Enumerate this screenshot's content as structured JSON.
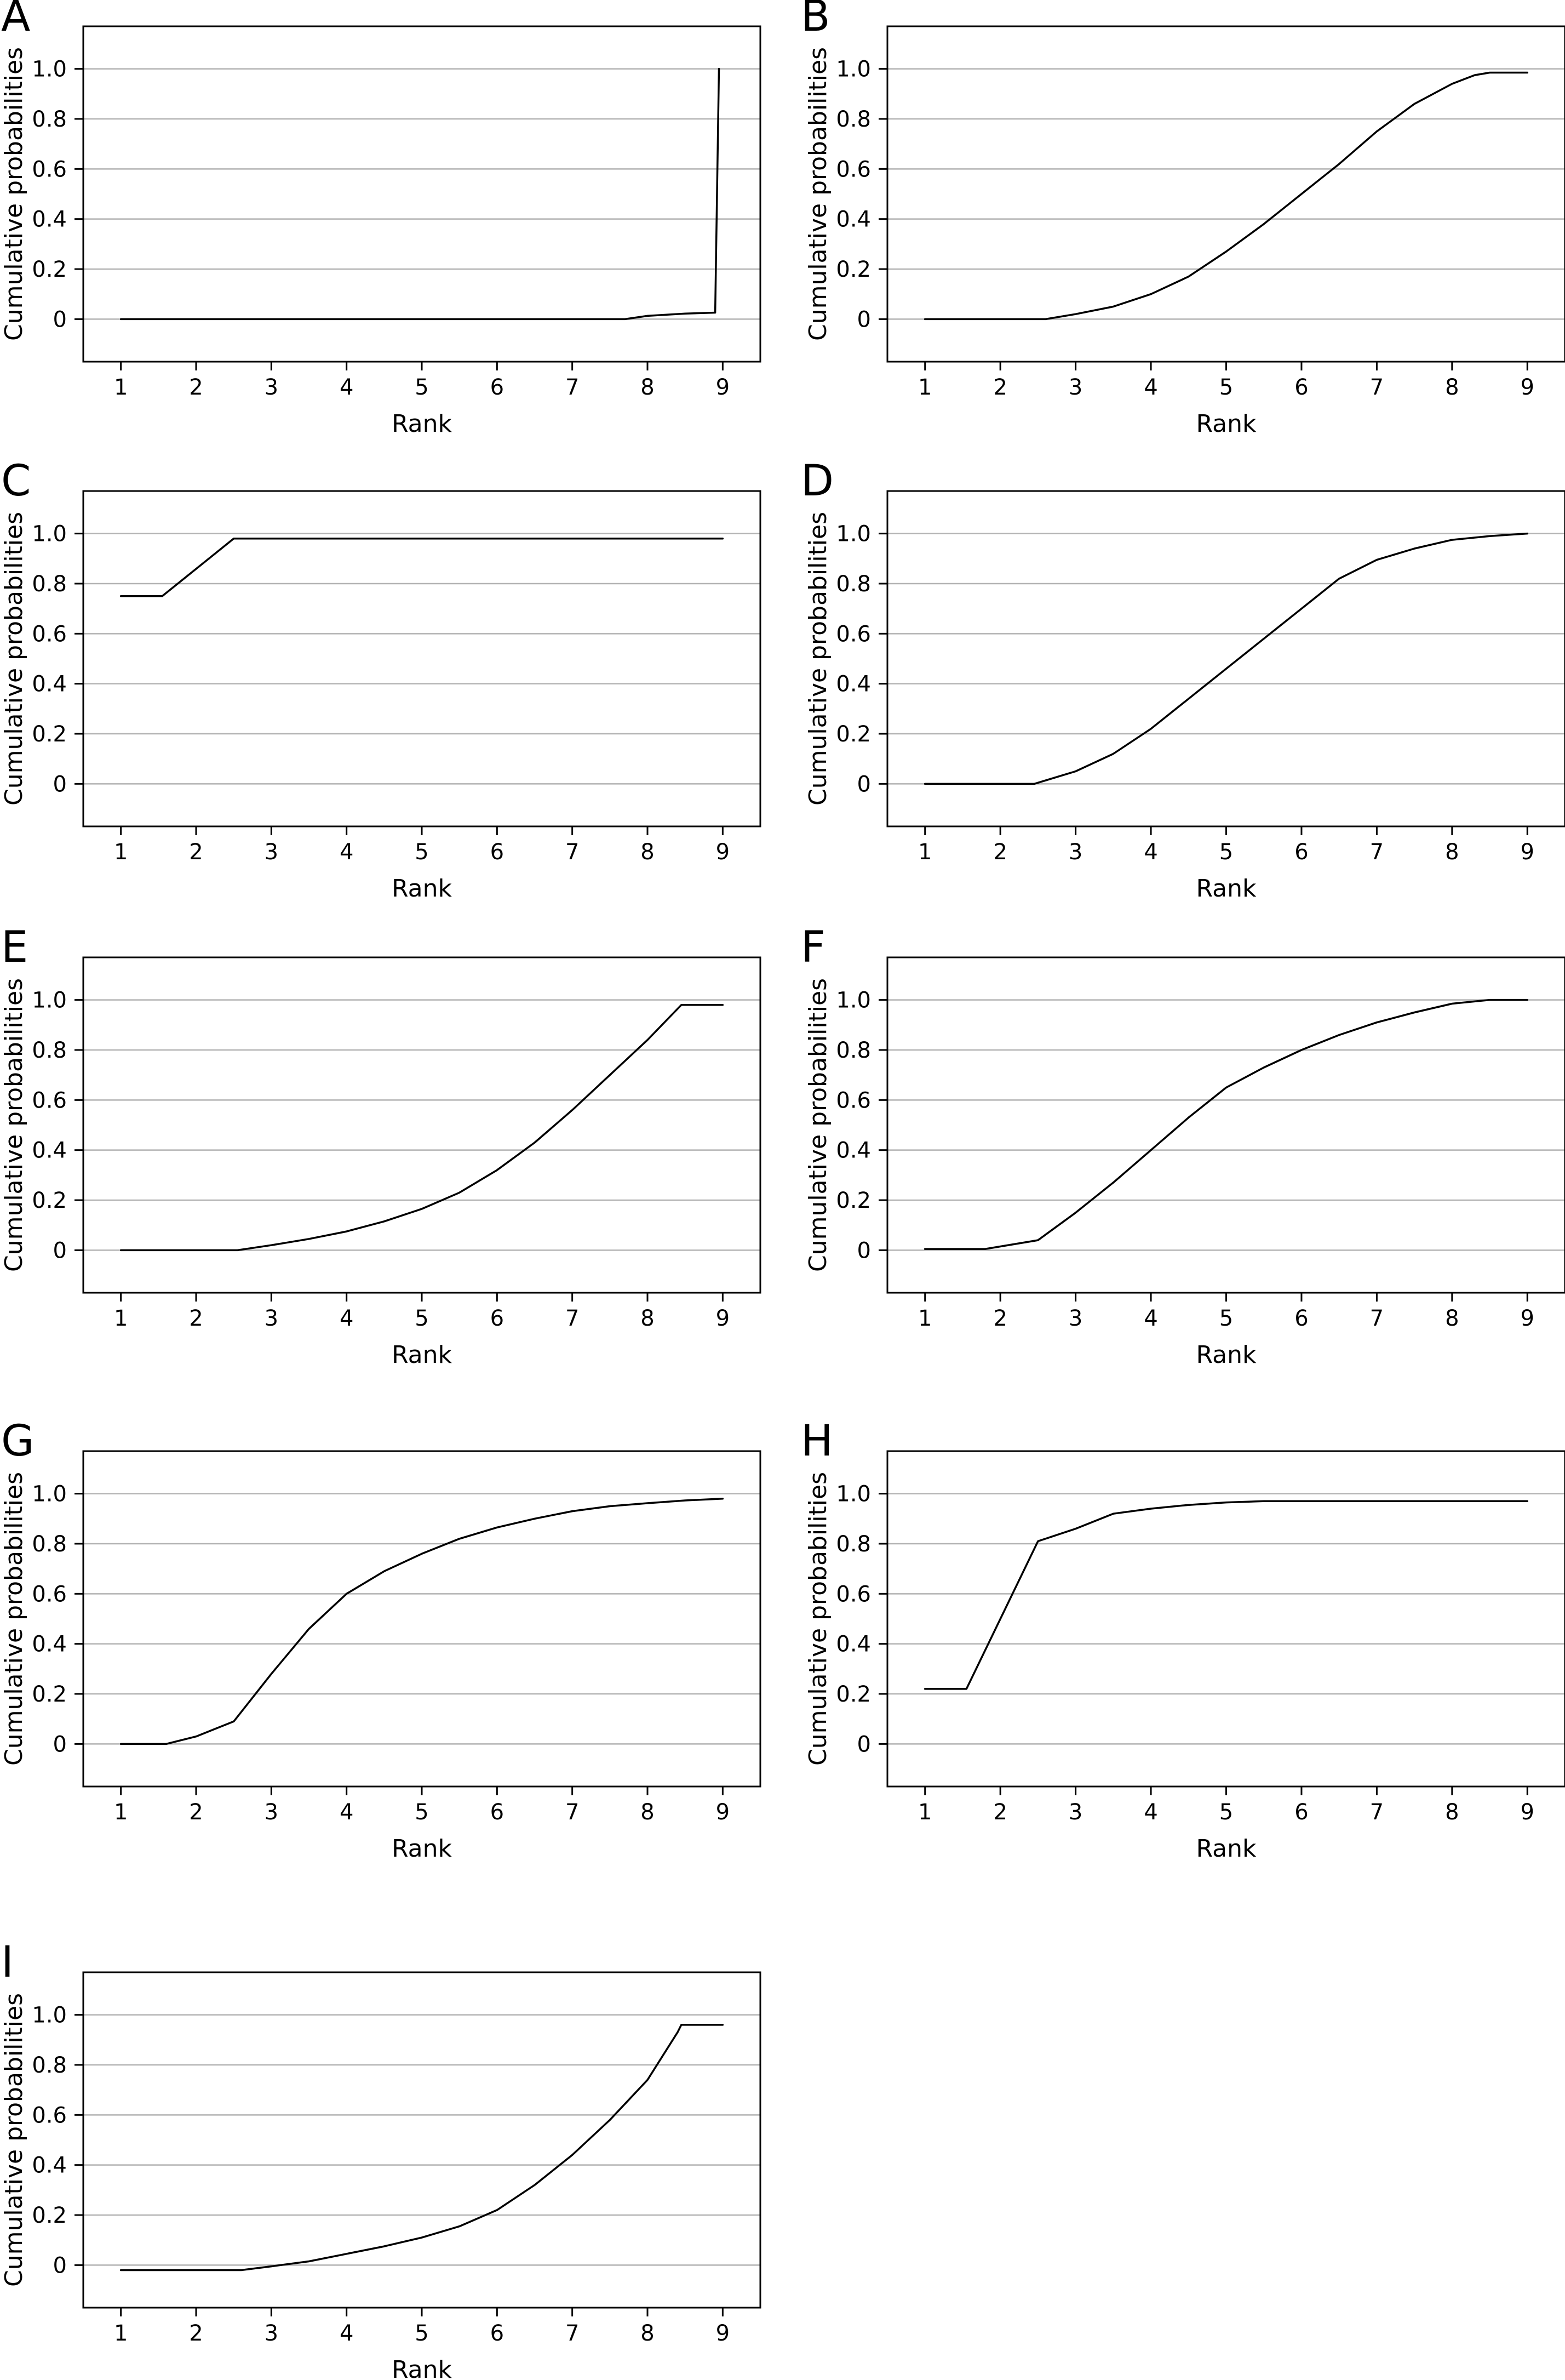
{
  "chart_data": [
    {
      "panel": "A",
      "type": "line",
      "xlabel": "Rank",
      "ylabel": "Cumulative probabilities",
      "x_ticks": [
        "1",
        "2",
        "3",
        "4",
        "5",
        "6",
        "7",
        "8",
        "9"
      ],
      "y_ticks": [
        "0",
        "0.2",
        "0.4",
        "0.6",
        "0.8",
        "1.0"
      ],
      "xlim": [
        0.5,
        9.5
      ],
      "ylim": [
        -0.17,
        1.17
      ],
      "grid": "horizontal",
      "points": [
        [
          1,
          0
        ],
        [
          2,
          0
        ],
        [
          3,
          0
        ],
        [
          4,
          0
        ],
        [
          5,
          0
        ],
        [
          6,
          0
        ],
        [
          7,
          0
        ],
        [
          7.7,
          0
        ],
        [
          8,
          0.013
        ],
        [
          8.5,
          0.022
        ],
        [
          8.9,
          0.026
        ],
        [
          8.95,
          1.0
        ]
      ]
    },
    {
      "panel": "B",
      "type": "line",
      "xlabel": "Rank",
      "ylabel": "Cumulative probabilities",
      "x_ticks": [
        "1",
        "2",
        "3",
        "4",
        "5",
        "6",
        "7",
        "8",
        "9"
      ],
      "y_ticks": [
        "0",
        "0.2",
        "0.4",
        "0.6",
        "0.8",
        "1.0"
      ],
      "xlim": [
        0.5,
        9.5
      ],
      "ylim": [
        -0.17,
        1.17
      ],
      "grid": "horizontal",
      "points": [
        [
          1,
          0
        ],
        [
          2,
          0
        ],
        [
          2.6,
          0
        ],
        [
          3,
          0.02
        ],
        [
          3.5,
          0.05
        ],
        [
          4,
          0.1
        ],
        [
          4.5,
          0.17
        ],
        [
          5,
          0.27
        ],
        [
          5.5,
          0.38
        ],
        [
          6,
          0.5
        ],
        [
          6.5,
          0.62
        ],
        [
          7,
          0.75
        ],
        [
          7.5,
          0.86
        ],
        [
          8,
          0.94
        ],
        [
          8.3,
          0.975
        ],
        [
          8.5,
          0.985
        ],
        [
          9,
          0.985
        ]
      ]
    },
    {
      "panel": "C",
      "type": "line",
      "xlabel": "Rank",
      "ylabel": "Cumulative probabilities",
      "x_ticks": [
        "1",
        "2",
        "3",
        "4",
        "5",
        "6",
        "7",
        "8",
        "9"
      ],
      "y_ticks": [
        "0",
        "0.2",
        "0.4",
        "0.6",
        "0.8",
        "1.0"
      ],
      "xlim": [
        0.5,
        9.5
      ],
      "ylim": [
        -0.17,
        1.17
      ],
      "grid": "horizontal",
      "points": [
        [
          1,
          0.75
        ],
        [
          1.55,
          0.75
        ],
        [
          2.5,
          0.98
        ],
        [
          3,
          0.98
        ],
        [
          4,
          0.98
        ],
        [
          5,
          0.98
        ],
        [
          6,
          0.98
        ],
        [
          7,
          0.98
        ],
        [
          8,
          0.98
        ],
        [
          9,
          0.98
        ]
      ]
    },
    {
      "panel": "D",
      "type": "line",
      "xlabel": "Rank",
      "ylabel": "Cumulative probabilities",
      "x_ticks": [
        "1",
        "2",
        "3",
        "4",
        "5",
        "6",
        "7",
        "8",
        "9"
      ],
      "y_ticks": [
        "0",
        "0.2",
        "0.4",
        "0.6",
        "0.8",
        "1.0"
      ],
      "xlim": [
        0.5,
        9.5
      ],
      "ylim": [
        -0.17,
        1.17
      ],
      "grid": "horizontal",
      "points": [
        [
          1,
          0
        ],
        [
          2,
          0
        ],
        [
          2.45,
          0
        ],
        [
          3,
          0.05
        ],
        [
          3.5,
          0.12
        ],
        [
          4,
          0.22
        ],
        [
          4.5,
          0.34
        ],
        [
          5,
          0.46
        ],
        [
          5.5,
          0.58
        ],
        [
          6,
          0.7
        ],
        [
          6.5,
          0.82
        ],
        [
          7,
          0.895
        ],
        [
          7.5,
          0.94
        ],
        [
          8,
          0.975
        ],
        [
          8.5,
          0.99
        ],
        [
          9,
          1.0
        ]
      ]
    },
    {
      "panel": "E",
      "type": "line",
      "xlabel": "Rank",
      "ylabel": "Cumulative probabilities",
      "x_ticks": [
        "1",
        "2",
        "3",
        "4",
        "5",
        "6",
        "7",
        "8",
        "9"
      ],
      "y_ticks": [
        "0",
        "0.2",
        "0.4",
        "0.6",
        "0.8",
        "1.0"
      ],
      "xlim": [
        0.5,
        9.5
      ],
      "ylim": [
        -0.17,
        1.17
      ],
      "grid": "horizontal",
      "points": [
        [
          1,
          0
        ],
        [
          2,
          0
        ],
        [
          2.55,
          0
        ],
        [
          3,
          0.02
        ],
        [
          3.5,
          0.045
        ],
        [
          4,
          0.075
        ],
        [
          4.5,
          0.115
        ],
        [
          5,
          0.165
        ],
        [
          5.5,
          0.23
        ],
        [
          6,
          0.32
        ],
        [
          6.5,
          0.43
        ],
        [
          7,
          0.56
        ],
        [
          7.5,
          0.7
        ],
        [
          8,
          0.84
        ],
        [
          8.45,
          0.98
        ],
        [
          9,
          0.98
        ]
      ]
    },
    {
      "panel": "F",
      "type": "line",
      "xlabel": "Rank",
      "ylabel": "Cumulative probabilities",
      "x_ticks": [
        "1",
        "2",
        "3",
        "4",
        "5",
        "6",
        "7",
        "8",
        "9"
      ],
      "y_ticks": [
        "0",
        "0.2",
        "0.4",
        "0.6",
        "0.8",
        "1.0"
      ],
      "xlim": [
        0.5,
        9.5
      ],
      "ylim": [
        -0.17,
        1.17
      ],
      "grid": "horizontal",
      "points": [
        [
          1,
          0.005
        ],
        [
          1.8,
          0.005
        ],
        [
          2.5,
          0.04
        ],
        [
          3,
          0.15
        ],
        [
          3.5,
          0.27
        ],
        [
          4,
          0.4
        ],
        [
          4.5,
          0.53
        ],
        [
          5,
          0.65
        ],
        [
          5.5,
          0.73
        ],
        [
          6,
          0.8
        ],
        [
          6.5,
          0.86
        ],
        [
          7,
          0.91
        ],
        [
          7.5,
          0.95
        ],
        [
          8,
          0.985
        ],
        [
          8.5,
          1.0
        ],
        [
          9,
          1.0
        ]
      ]
    },
    {
      "panel": "G",
      "type": "line",
      "xlabel": "Rank",
      "ylabel": "Cumulative probabilities",
      "x_ticks": [
        "1",
        "2",
        "3",
        "4",
        "5",
        "6",
        "7",
        "8",
        "9"
      ],
      "y_ticks": [
        "0",
        "0.2",
        "0.4",
        "0.6",
        "0.8",
        "1.0"
      ],
      "xlim": [
        0.5,
        9.5
      ],
      "ylim": [
        -0.17,
        1.17
      ],
      "grid": "horizontal",
      "points": [
        [
          1,
          0
        ],
        [
          1.6,
          0
        ],
        [
          2,
          0.03
        ],
        [
          2.5,
          0.09
        ],
        [
          3,
          0.28
        ],
        [
          3.5,
          0.46
        ],
        [
          4,
          0.6
        ],
        [
          4.5,
          0.69
        ],
        [
          5,
          0.76
        ],
        [
          5.5,
          0.82
        ],
        [
          6,
          0.865
        ],
        [
          6.5,
          0.9
        ],
        [
          7,
          0.93
        ],
        [
          7.5,
          0.95
        ],
        [
          8,
          0.962
        ],
        [
          8.5,
          0.973
        ],
        [
          9,
          0.98
        ]
      ]
    },
    {
      "panel": "H",
      "type": "line",
      "xlabel": "Rank",
      "ylabel": "Cumulative probabilities",
      "x_ticks": [
        "1",
        "2",
        "3",
        "4",
        "5",
        "6",
        "7",
        "8",
        "9"
      ],
      "y_ticks": [
        "0",
        "0.2",
        "0.4",
        "0.6",
        "0.8",
        "1.0"
      ],
      "xlim": [
        0.5,
        9.5
      ],
      "ylim": [
        -0.17,
        1.17
      ],
      "grid": "horizontal",
      "points": [
        [
          1,
          0.22
        ],
        [
          1.55,
          0.22
        ],
        [
          2.5,
          0.81
        ],
        [
          3,
          0.86
        ],
        [
          3.5,
          0.92
        ],
        [
          4,
          0.94
        ],
        [
          4.5,
          0.955
        ],
        [
          5,
          0.965
        ],
        [
          5.5,
          0.97
        ],
        [
          6,
          0.97
        ],
        [
          7,
          0.97
        ],
        [
          8,
          0.97
        ],
        [
          9,
          0.97
        ]
      ]
    },
    {
      "panel": "I",
      "type": "line",
      "xlabel": "Rank",
      "ylabel": "Cumulative probabilities",
      "x_ticks": [
        "1",
        "2",
        "3",
        "4",
        "5",
        "6",
        "7",
        "8",
        "9"
      ],
      "y_ticks": [
        "0",
        "0.2",
        "0.4",
        "0.6",
        "0.8",
        "1.0"
      ],
      "xlim": [
        0.5,
        9.5
      ],
      "ylim": [
        -0.17,
        1.17
      ],
      "grid": "horizontal",
      "points": [
        [
          1,
          -0.02
        ],
        [
          2,
          -0.02
        ],
        [
          2.6,
          -0.02
        ],
        [
          3,
          -0.005
        ],
        [
          3.5,
          0.015
        ],
        [
          4,
          0.045
        ],
        [
          4.5,
          0.075
        ],
        [
          5,
          0.11
        ],
        [
          5.5,
          0.155
        ],
        [
          6,
          0.22
        ],
        [
          6.5,
          0.32
        ],
        [
          7,
          0.44
        ],
        [
          7.5,
          0.58
        ],
        [
          8,
          0.74
        ],
        [
          8.4,
          0.93
        ],
        [
          8.45,
          0.96
        ],
        [
          9,
          0.96
        ]
      ]
    }
  ]
}
